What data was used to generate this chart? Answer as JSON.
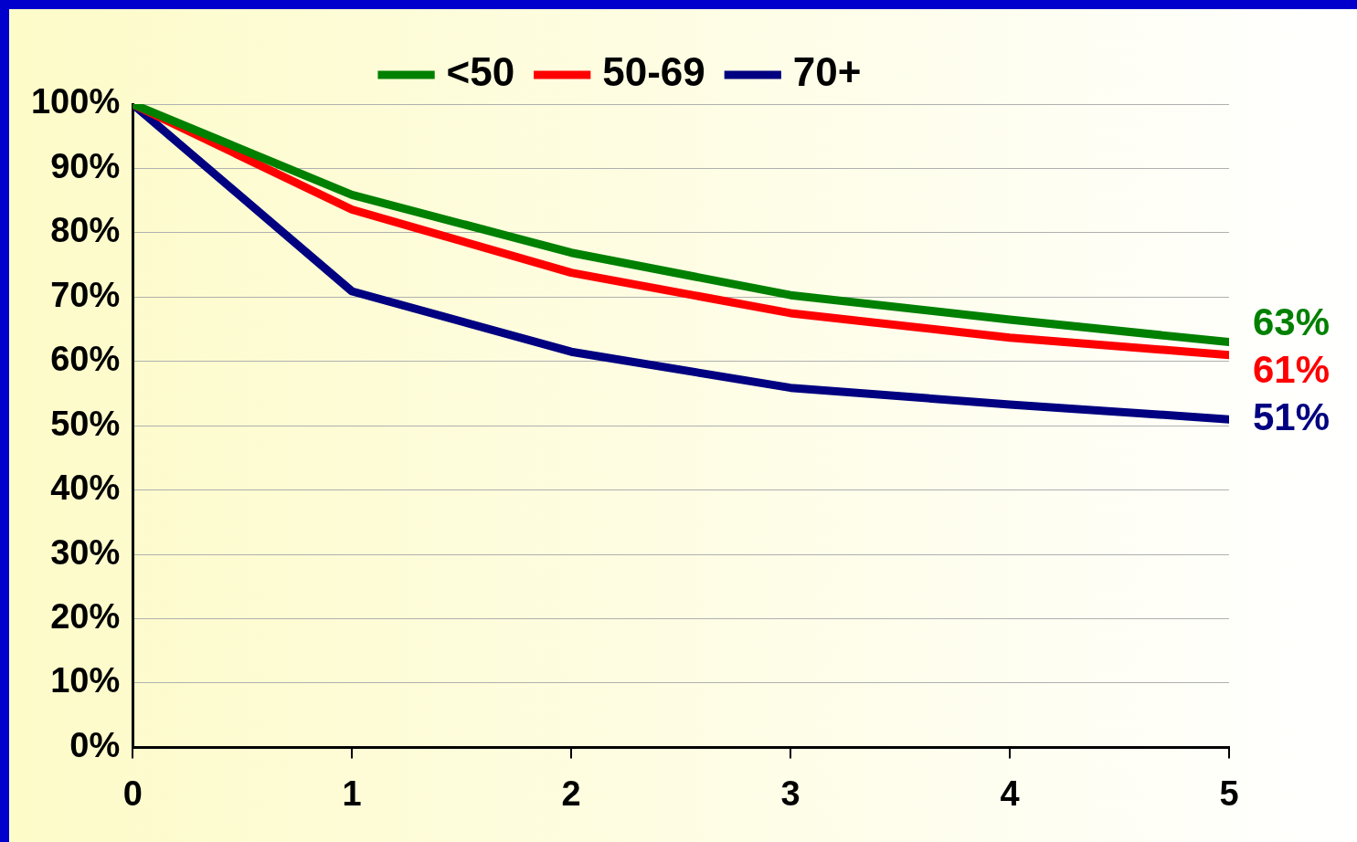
{
  "chart_data": {
    "type": "line",
    "x": [
      0,
      1,
      2,
      3,
      4,
      5
    ],
    "series": [
      {
        "name": "<50",
        "color": "#008000",
        "values": [
          100,
          85.9,
          76.9,
          70.3,
          66.5,
          63
        ],
        "value_labels": [
          null,
          null,
          null,
          null,
          null,
          "63%"
        ]
      },
      {
        "name": "50-69",
        "color": "#ff0000",
        "values": [
          100,
          83.6,
          73.8,
          67.5,
          63.7,
          61
        ],
        "value_labels": [
          null,
          null,
          null,
          null,
          null,
          "61%"
        ]
      },
      {
        "name": "70+",
        "color": "#000080",
        "values": [
          100,
          70.9,
          61.5,
          55.9,
          53.3,
          51
        ],
        "value_labels": [
          null,
          null,
          null,
          null,
          null,
          "51%"
        ]
      }
    ],
    "xlim": [
      0,
      5
    ],
    "xticks": [
      0,
      1,
      2,
      3,
      4,
      5
    ],
    "ylim": [
      0,
      100
    ],
    "yticks": [
      {
        "value": 0,
        "label": "0%"
      },
      {
        "value": 10,
        "label": "10%"
      },
      {
        "value": 20,
        "label": "20%"
      },
      {
        "value": 30,
        "label": "30%"
      },
      {
        "value": 40,
        "label": "40%"
      },
      {
        "value": 50,
        "label": "50%"
      },
      {
        "value": 60,
        "label": "60%"
      },
      {
        "value": 70,
        "label": "70%"
      },
      {
        "value": 80,
        "label": "80%"
      },
      {
        "value": 90,
        "label": "90%"
      },
      {
        "value": 100,
        "label": "100%"
      }
    ],
    "grid": "y",
    "legend": "top",
    "marker": "none",
    "line_style": "solid"
  }
}
